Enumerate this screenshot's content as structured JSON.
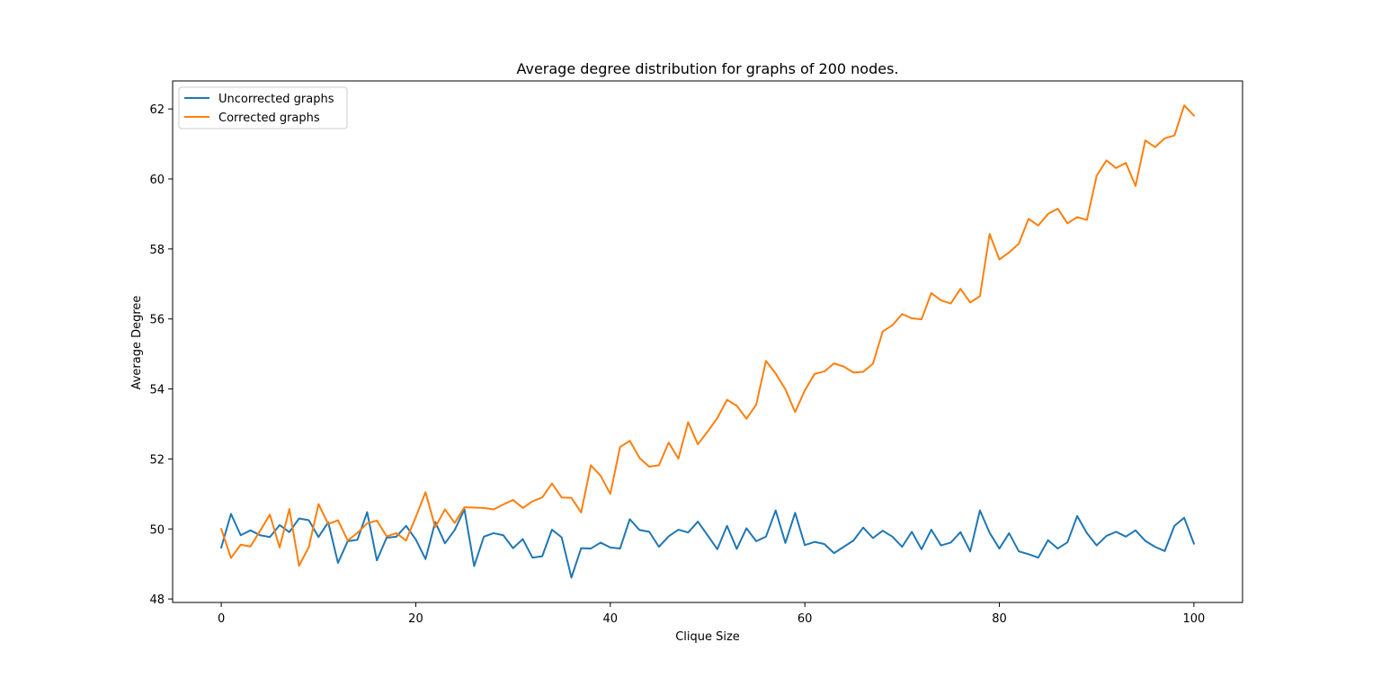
{
  "chart_data": {
    "type": "line",
    "title": "Average degree distribution for graphs of 200 nodes.",
    "xlabel": "Clique Size",
    "ylabel": "Average Degree",
    "xlim": [
      -5,
      105
    ],
    "ylim": [
      47.9,
      62.8
    ],
    "xticks": [
      0,
      20,
      40,
      60,
      80,
      100
    ],
    "yticks": [
      48,
      50,
      52,
      54,
      56,
      58,
      60,
      62
    ],
    "grid": false,
    "legend_position": "top-left",
    "x": [
      0,
      1,
      2,
      3,
      4,
      5,
      6,
      7,
      8,
      9,
      10,
      11,
      12,
      13,
      14,
      15,
      16,
      17,
      18,
      19,
      20,
      21,
      22,
      23,
      24,
      25,
      26,
      27,
      28,
      29,
      30,
      31,
      32,
      33,
      34,
      35,
      36,
      37,
      38,
      39,
      40,
      41,
      42,
      43,
      44,
      45,
      46,
      47,
      48,
      49,
      50,
      51,
      52,
      53,
      54,
      55,
      56,
      57,
      58,
      59,
      60,
      61,
      62,
      63,
      64,
      65,
      66,
      67,
      68,
      69,
      70,
      71,
      72,
      73,
      74,
      75,
      76,
      77,
      78,
      79,
      80,
      81,
      82,
      83,
      84,
      85,
      86,
      87,
      88,
      89,
      90,
      91,
      92,
      93,
      94,
      95,
      96,
      97,
      98,
      99,
      100
    ],
    "series": [
      {
        "name": "Uncorrected graphs",
        "color": "#1f77b4",
        "values": [
          49.47,
          50.43,
          49.82,
          49.96,
          49.82,
          49.77,
          50.11,
          49.91,
          50.3,
          50.25,
          49.77,
          50.19,
          49.03,
          49.65,
          49.69,
          50.48,
          49.1,
          49.75,
          49.78,
          50.09,
          49.7,
          49.14,
          50.2,
          49.59,
          49.97,
          50.56,
          48.94,
          49.78,
          49.88,
          49.82,
          49.45,
          49.71,
          49.18,
          49.22,
          49.98,
          49.76,
          48.61,
          49.45,
          49.44,
          49.61,
          49.47,
          49.44,
          50.28,
          49.97,
          49.92,
          49.49,
          49.79,
          49.98,
          49.9,
          50.21,
          49.82,
          49.42,
          50.09,
          49.43,
          50.02,
          49.65,
          49.78,
          50.53,
          49.6,
          50.46,
          49.54,
          49.63,
          49.57,
          49.31,
          49.49,
          49.67,
          50.04,
          49.74,
          49.95,
          49.78,
          49.49,
          49.92,
          49.42,
          49.98,
          49.53,
          49.61,
          49.91,
          49.36,
          50.53,
          49.89,
          49.44,
          49.88,
          49.36,
          49.28,
          49.18,
          49.68,
          49.44,
          49.62,
          50.37,
          49.88,
          49.53,
          49.8,
          49.92,
          49.78,
          49.96,
          49.66,
          49.49,
          49.37,
          50.09,
          50.32,
          49.58
        ]
      },
      {
        "name": "Corrected graphs",
        "color": "#ff7f0e",
        "values": [
          50.0,
          49.17,
          49.55,
          49.5,
          49.95,
          50.41,
          49.47,
          50.57,
          48.95,
          49.48,
          50.71,
          50.14,
          50.25,
          49.67,
          49.89,
          50.16,
          50.24,
          49.79,
          49.88,
          49.67,
          50.34,
          51.05,
          50.05,
          50.56,
          50.17,
          50.62,
          50.61,
          50.6,
          50.56,
          50.7,
          50.83,
          50.6,
          50.79,
          50.9,
          51.3,
          50.9,
          50.89,
          50.47,
          51.82,
          51.52,
          51.0,
          52.34,
          52.52,
          52.03,
          51.78,
          51.82,
          52.47,
          52.01,
          53.05,
          52.42,
          52.78,
          53.17,
          53.69,
          53.52,
          53.15,
          53.55,
          54.8,
          54.44,
          53.99,
          53.34,
          53.96,
          54.43,
          54.5,
          54.73,
          54.64,
          54.47,
          54.49,
          54.72,
          55.64,
          55.82,
          56.14,
          56.02,
          55.99,
          56.74,
          56.53,
          56.44,
          56.86,
          56.47,
          56.65,
          58.43,
          57.7,
          57.9,
          58.15,
          58.86,
          58.67,
          59.0,
          59.15,
          58.73,
          58.91,
          58.83,
          60.09,
          60.53,
          60.31,
          60.46,
          59.8,
          61.1,
          60.91,
          61.16,
          61.24,
          62.1,
          61.81
        ]
      }
    ]
  }
}
